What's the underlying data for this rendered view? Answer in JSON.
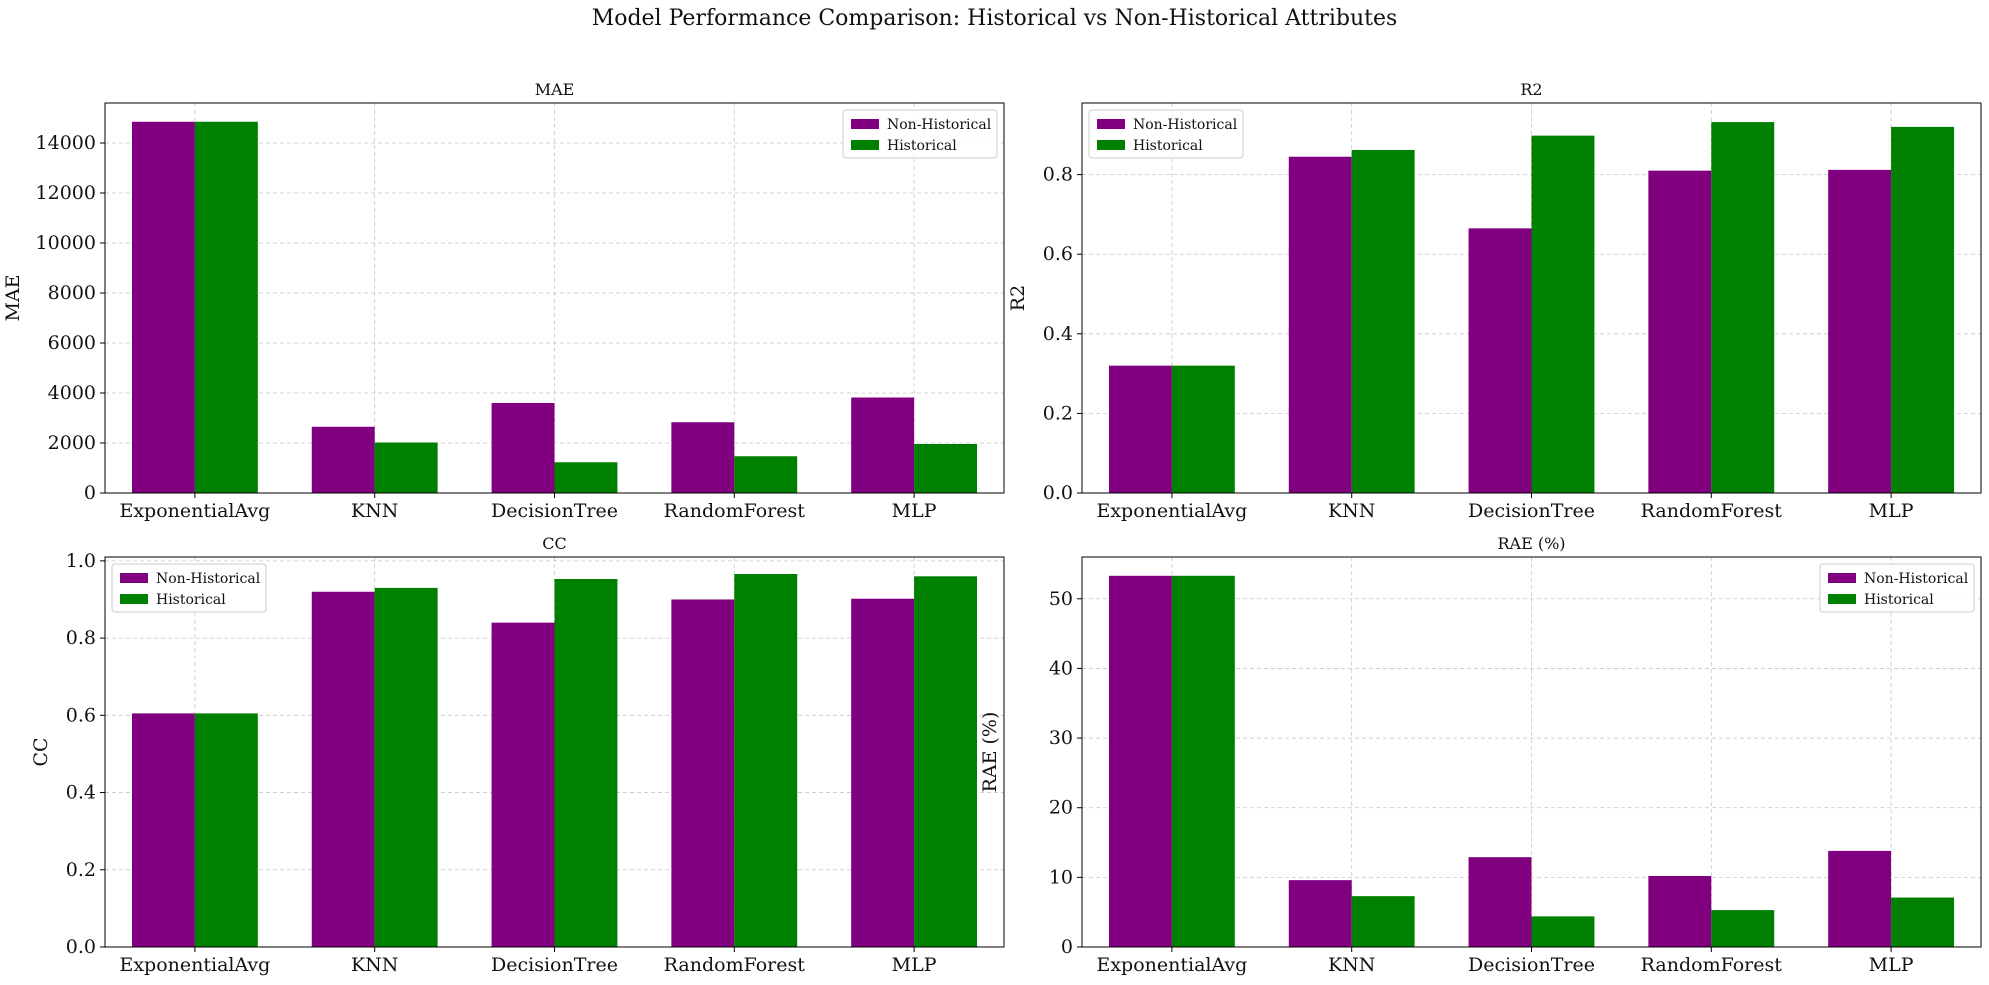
{
  "suptitle": "Model Performance Comparison: Historical vs Non-Historical Attributes",
  "colors": {
    "non_historical": "#800080",
    "historical": "#008000"
  },
  "chart_data": [
    {
      "type": "bar",
      "title": "MAE",
      "ylabel": "MAE",
      "categories": [
        "ExponentialAvg",
        "KNN",
        "DecisionTree",
        "RandomForest",
        "MLP"
      ],
      "ylim": [
        0,
        15600
      ],
      "yticks": [
        0,
        2000,
        4000,
        6000,
        8000,
        10000,
        12000,
        14000
      ],
      "legend_loc": "upper right",
      "grid": true,
      "series": [
        {
          "name": "Non-Historical",
          "values": [
            14850,
            2650,
            3600,
            2830,
            3820
          ]
        },
        {
          "name": "Historical",
          "values": [
            14850,
            2020,
            1230,
            1470,
            1960
          ]
        }
      ]
    },
    {
      "type": "bar",
      "title": "R2",
      "ylabel": "R2",
      "categories": [
        "ExponentialAvg",
        "KNN",
        "DecisionTree",
        "RandomForest",
        "MLP"
      ],
      "ylim": [
        0,
        0.98
      ],
      "yticks": [
        0.0,
        0.2,
        0.4,
        0.6,
        0.8
      ],
      "legend_loc": "upper left",
      "grid": true,
      "series": [
        {
          "name": "Non-Historical",
          "values": [
            0.32,
            0.845,
            0.665,
            0.81,
            0.812
          ]
        },
        {
          "name": "Historical",
          "values": [
            0.32,
            0.862,
            0.898,
            0.932,
            0.92
          ]
        }
      ]
    },
    {
      "type": "bar",
      "title": "CC",
      "ylabel": "CC",
      "categories": [
        "ExponentialAvg",
        "KNN",
        "DecisionTree",
        "RandomForest",
        "MLP"
      ],
      "ylim": [
        0,
        1.01
      ],
      "yticks": [
        0.0,
        0.2,
        0.4,
        0.6,
        0.8,
        1.0
      ],
      "legend_loc": "upper left",
      "grid": true,
      "series": [
        {
          "name": "Non-Historical",
          "values": [
            0.605,
            0.92,
            0.84,
            0.9,
            0.902
          ]
        },
        {
          "name": "Historical",
          "values": [
            0.605,
            0.93,
            0.953,
            0.966,
            0.96
          ]
        }
      ]
    },
    {
      "type": "bar",
      "title": "RAE (%)",
      "ylabel": "RAE (%)",
      "categories": [
        "ExponentialAvg",
        "KNN",
        "DecisionTree",
        "RandomForest",
        "MLP"
      ],
      "ylim": [
        0,
        56
      ],
      "yticks": [
        0,
        10,
        20,
        30,
        40,
        50
      ],
      "legend_loc": "upper right",
      "grid": true,
      "series": [
        {
          "name": "Non-Historical",
          "values": [
            53.3,
            9.6,
            12.9,
            10.2,
            13.8
          ]
        },
        {
          "name": "Historical",
          "values": [
            53.3,
            7.3,
            4.4,
            5.3,
            7.1
          ]
        }
      ]
    }
  ]
}
